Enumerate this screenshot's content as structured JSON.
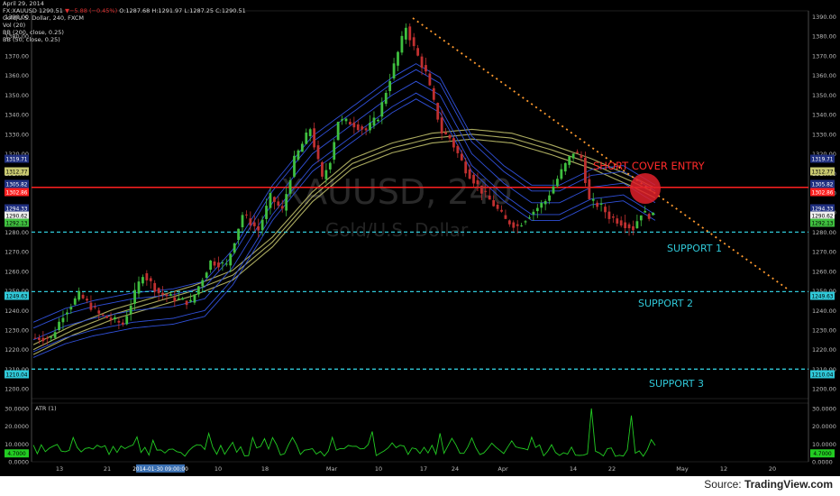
{
  "header": {
    "date": "April 29, 2014",
    "symbol_line_prefix": "FX:XAUUSD",
    "price": "1290.51",
    "change": "▼−5.88 (−0.45%)",
    "ohlc": "O:1287.68 H:1291.97 L:1287.25 C:1290.51",
    "title": "Gold/U.S. Dollar, 240, FXCM",
    "ind1": "Vol (20)",
    "ind2": "BB (200, close, 0.25)",
    "ind3": "BB (50, close, 0.25)"
  },
  "watermark": {
    "ticker": "XAUUSD, 240",
    "name": "Gold/U.S. Dollar"
  },
  "annotations": {
    "short_cover": "SHORT COVER ENTRY",
    "support1": "SUPPORT 1",
    "support2": "SUPPORT 2",
    "support3": "SUPPORT 3"
  },
  "atr_label": "ATR (1)",
  "source_label": "Source: ",
  "source_brand": "TradingView.com",
  "colors": {
    "up": "#3fbf3f",
    "down": "#c03030",
    "bb200": "#c8c870",
    "bb50": "#3050d8",
    "support": "#30c8d8",
    "resist": "#ff2020",
    "trend": "#ff9a2e",
    "atr": "#22cc22"
  },
  "chart_data": {
    "type": "candlestick",
    "title": "Gold/U.S. Dollar, 240, FXCM",
    "price_axis": {
      "ylim": [
        1195,
        1393
      ],
      "ticks": [
        "1390.00",
        "1380.00",
        "1370.00",
        "1360.00",
        "1350.00",
        "1340.00",
        "1330.00",
        "1320.00",
        "1310.00",
        "1300.00",
        "1290.00",
        "1280.00",
        "1270.00",
        "1260.00",
        "1250.00",
        "1240.00",
        "1230.00",
        "1220.00",
        "1210.00",
        "1200.00"
      ]
    },
    "x_axis": {
      "ticks": [
        "13",
        "21",
        "2014-01-30 09:00:00",
        "10",
        "18",
        "Mar",
        "10",
        "17",
        "24",
        "Apr",
        "14",
        "22",
        "May",
        "12",
        "20"
      ],
      "highlighted": "2014-01-30 09:00:00"
    },
    "price_path": [
      [
        0,
        1226
      ],
      [
        5,
        1226
      ],
      [
        8,
        1238
      ],
      [
        12,
        1248
      ],
      [
        17,
        1238
      ],
      [
        23,
        1233
      ],
      [
        28,
        1259
      ],
      [
        32,
        1249
      ],
      [
        36,
        1246
      ],
      [
        40,
        1244
      ],
      [
        45,
        1265
      ],
      [
        49,
        1263
      ],
      [
        53,
        1289
      ],
      [
        57,
        1281
      ],
      [
        60,
        1298
      ],
      [
        63,
        1291
      ],
      [
        66,
        1317
      ],
      [
        70,
        1333
      ],
      [
        73,
        1307
      ],
      [
        75,
        1317
      ],
      [
        77,
        1337
      ],
      [
        80,
        1336
      ],
      [
        84,
        1332
      ],
      [
        87,
        1339
      ],
      [
        91,
        1365
      ],
      [
        94,
        1385
      ],
      [
        96,
        1374
      ],
      [
        99,
        1361
      ],
      [
        103,
        1331
      ],
      [
        105,
        1328
      ],
      [
        109,
        1312
      ],
      [
        113,
        1301
      ],
      [
        116,
        1294
      ],
      [
        119,
        1286
      ],
      [
        122,
        1283
      ],
      [
        125,
        1289
      ],
      [
        129,
        1296
      ],
      [
        133,
        1311
      ],
      [
        136,
        1321
      ],
      [
        138,
        1318
      ],
      [
        140,
        1296
      ],
      [
        143,
        1293
      ],
      [
        145,
        1288
      ],
      [
        148,
        1285
      ],
      [
        151,
        1282
      ],
      [
        153,
        1290
      ],
      [
        156,
        1288
      ]
    ],
    "bb200_mid": [
      [
        0,
        1220
      ],
      [
        10,
        1230
      ],
      [
        20,
        1238
      ],
      [
        30,
        1244
      ],
      [
        40,
        1250
      ],
      [
        50,
        1258
      ],
      [
        60,
        1275
      ],
      [
        70,
        1298
      ],
      [
        80,
        1315
      ],
      [
        90,
        1323
      ],
      [
        100,
        1328
      ],
      [
        110,
        1330
      ],
      [
        120,
        1328
      ],
      [
        130,
        1322
      ],
      [
        140,
        1315
      ],
      [
        150,
        1306
      ],
      [
        156,
        1300
      ]
    ],
    "bb50_mid": [
      [
        0,
        1225
      ],
      [
        8,
        1232
      ],
      [
        15,
        1236
      ],
      [
        25,
        1240
      ],
      [
        35,
        1242
      ],
      [
        43,
        1246
      ],
      [
        50,
        1262
      ],
      [
        60,
        1295
      ],
      [
        70,
        1320
      ],
      [
        80,
        1335
      ],
      [
        90,
        1350
      ],
      [
        96,
        1357
      ],
      [
        102,
        1350
      ],
      [
        110,
        1320
      ],
      [
        118,
        1305
      ],
      [
        125,
        1295
      ],
      [
        132,
        1295
      ],
      [
        140,
        1303
      ],
      [
        148,
        1305
      ],
      [
        156,
        1295
      ]
    ],
    "levels": {
      "short_cover_entry": 1302.86,
      "support1": 1280.0,
      "support2": 1249.63,
      "support3": 1210.04
    },
    "right_axis_labels": [
      {
        "value": "1319.71",
        "bg": "#203080",
        "fg": "#ffffff"
      },
      {
        "value": "1312.77",
        "bg": "#c8c870",
        "fg": "#000000"
      },
      {
        "value": "1305.82",
        "bg": "#203080",
        "fg": "#ffffff"
      },
      {
        "value": "1302.86",
        "bg": "#ff2020",
        "fg": "#ffffff"
      },
      {
        "value": "1294.33",
        "bg": "#203080",
        "fg": "#ffffff"
      },
      {
        "value": "1290.62",
        "bg": "#eeeeee",
        "fg": "#000000"
      },
      {
        "value": "1292.13",
        "bg": "#3fbf3f",
        "fg": "#000000"
      },
      {
        "value": "1249.63",
        "bg": "#30c8d8",
        "fg": "#000000"
      },
      {
        "value": "1210.04",
        "bg": "#30c8d8",
        "fg": "#000000"
      }
    ],
    "left_axis_labels": [
      {
        "value": "1319.71",
        "bg": "#203080",
        "fg": "#ffffff"
      },
      {
        "value": "1312.77",
        "bg": "#c8c870",
        "fg": "#000000"
      },
      {
        "value": "1305.82",
        "bg": "#203080",
        "fg": "#ffffff"
      },
      {
        "value": "1302.86",
        "bg": "#ff2020",
        "fg": "#ffffff"
      },
      {
        "value": "1294.33",
        "bg": "#203080",
        "fg": "#ffffff"
      },
      {
        "value": "1290.62",
        "bg": "#eeeeee",
        "fg": "#000000"
      },
      {
        "value": "1292.13",
        "bg": "#3fbf3f",
        "fg": "#000000"
      },
      {
        "value": "1249.63",
        "bg": "#30c8d8",
        "fg": "#000000"
      },
      {
        "value": "1210.04",
        "bg": "#30c8d8",
        "fg": "#000000"
      }
    ],
    "atr_axis": {
      "ylim": [
        0,
        33
      ],
      "ticks": [
        "30.0000",
        "20.0000",
        "10.0000",
        "0.0000"
      ],
      "current": "4.7000"
    },
    "atr_spikes": [
      [
        140,
        30
      ],
      [
        150,
        26
      ],
      [
        85,
        17
      ],
      [
        44,
        16
      ],
      [
        102,
        16
      ],
      [
        26,
        14
      ],
      [
        58,
        13
      ]
    ]
  }
}
